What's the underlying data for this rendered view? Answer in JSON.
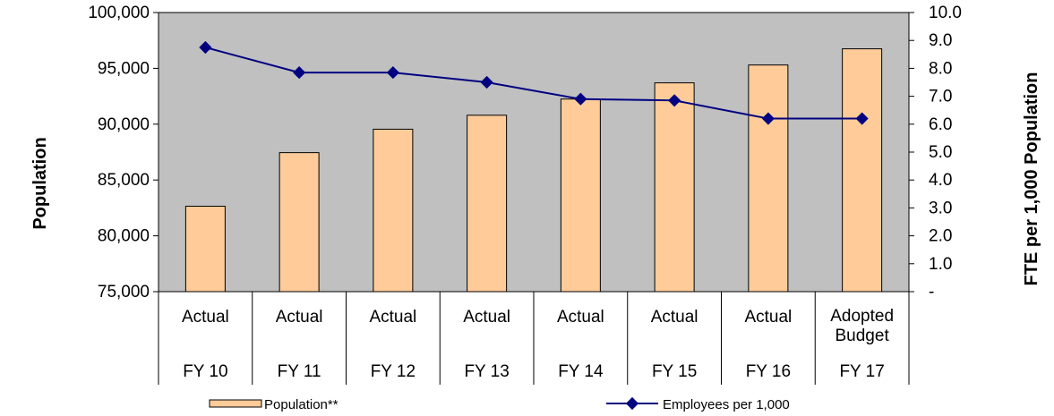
{
  "chart_data": {
    "type": "bar+line",
    "categories": [
      {
        "line1": "Actual",
        "line2": "",
        "fy": "FY 10"
      },
      {
        "line1": "Actual",
        "line2": "",
        "fy": "FY 11"
      },
      {
        "line1": "Actual",
        "line2": "",
        "fy": "FY 12"
      },
      {
        "line1": "Actual",
        "line2": "",
        "fy": "FY 13"
      },
      {
        "line1": "Actual",
        "line2": "",
        "fy": "FY 14"
      },
      {
        "line1": "Actual",
        "line2": "",
        "fy": "FY 15"
      },
      {
        "line1": "Actual",
        "line2": "",
        "fy": "FY 16"
      },
      {
        "line1": "Adopted",
        "line2": "Budget",
        "fy": "FY 17"
      }
    ],
    "series": [
      {
        "name": "Population**",
        "type": "bar",
        "axis": "left",
        "color": "#FFCC99",
        "values": [
          82650,
          87450,
          89550,
          90800,
          92250,
          93700,
          95300,
          96750
        ]
      },
      {
        "name": "Employees per 1,000",
        "type": "line",
        "axis": "right",
        "color": "#000080",
        "values": [
          8.75,
          7.85,
          7.85,
          7.5,
          6.9,
          6.85,
          6.2,
          6.2
        ]
      }
    ],
    "y_left": {
      "label": "Population",
      "ylim": [
        75000,
        100000
      ],
      "ticks": [
        "75,000",
        "80,000",
        "85,000",
        "90,000",
        "95,000",
        "100,000"
      ]
    },
    "y_right": {
      "label": "FTE per 1,000 Population",
      "ylim": [
        0,
        10
      ],
      "ticks": [
        "-",
        "1.0",
        "2.0",
        "3.0",
        "4.0",
        "5.0",
        "6.0",
        "7.0",
        "8.0",
        "9.0",
        "10.0"
      ]
    },
    "plot_background": "#C0C0C0",
    "grid": false,
    "legend_position": "bottom"
  }
}
